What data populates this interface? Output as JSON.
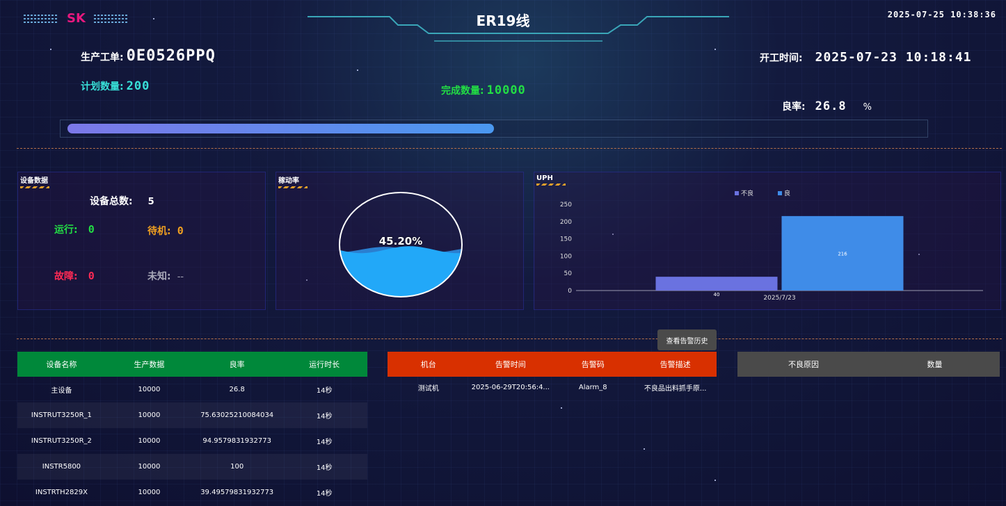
{
  "header": {
    "logo": "SK",
    "title": "ER19线",
    "datetime": "2025-07-25 10:38:36"
  },
  "order": {
    "work_order_label": "生产工单:",
    "work_order_value": "0E0526PPQ",
    "plan_label": "计划数量:",
    "plan_value": "200",
    "done_label": "完成数量:",
    "done_value": "10000",
    "start_label": "开工时间:",
    "start_value": "2025-07-23 10:18:41",
    "yield_label": "良率:",
    "yield_value": "26.8",
    "yield_unit": "%",
    "progress": 0.5
  },
  "colors": {
    "green": "#22dd44",
    "cyan": "#38e0d8",
    "orange": "#f0a020",
    "red": "#ff2a55",
    "bar_bad": "#6a72e0",
    "bar_good": "#3f8ce8",
    "table_green": "#00883a",
    "table_red": "#d83000",
    "table_gray": "#4a4a4a"
  },
  "equipment": {
    "title": "设备数据",
    "total_label": "设备总数:",
    "total_value": "5",
    "running_label": "运行:",
    "running_value": "0",
    "standby_label": "待机:",
    "standby_value": "0",
    "fault_label": "故障:",
    "fault_value": "0",
    "unknown_label": "未知:",
    "unknown_value": "--"
  },
  "utilization": {
    "title": "稼动率",
    "value_text": "45.20%",
    "value": 0.452
  },
  "uph": {
    "title": "UPH"
  },
  "chart_data": {
    "type": "bar",
    "categories": [
      "2025/7/23"
    ],
    "series": [
      {
        "name": "不良",
        "values": [
          40
        ],
        "color": "#6a72e0"
      },
      {
        "name": "良",
        "values": [
          216
        ],
        "color": "#3f8ce8"
      }
    ],
    "ylim": [
      0,
      250
    ],
    "yticks": [
      0,
      50,
      100,
      150,
      200,
      250
    ],
    "legend": "top-center",
    "grid": false,
    "data_labels": [
      "40",
      "216"
    ]
  },
  "device_table": {
    "headers": [
      "设备名称",
      "生产数据",
      "良率",
      "运行时长"
    ],
    "rows": [
      [
        "主设备",
        "10000",
        "26.8",
        "14秒"
      ],
      [
        "INSTRUT3250R_1",
        "10000",
        "75.63025210084034",
        "14秒"
      ],
      [
        "INSTRUT3250R_2",
        "10000",
        "94.9579831932773",
        "14秒"
      ],
      [
        "INSTR5800",
        "10000",
        "100",
        "14秒"
      ],
      [
        "INSTRTH2829X",
        "10000",
        "39.49579831932773",
        "14秒"
      ]
    ]
  },
  "alarm": {
    "history_button": "查看告警历史",
    "headers": [
      "机台",
      "告警时间",
      "告警码",
      "告警描述"
    ],
    "rows": [
      [
        "测试机",
        "2025-06-29T20:56:4...",
        "Alarm_8",
        "不良品出料抓手原..."
      ]
    ]
  },
  "defect_table": {
    "headers": [
      "不良原因",
      "数量"
    ]
  }
}
